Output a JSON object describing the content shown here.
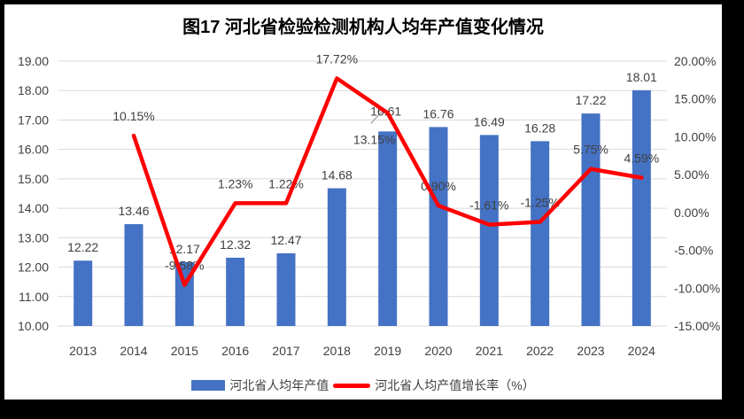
{
  "title": "图17 河北省检验检测机构人均年产值变化情况",
  "colors": {
    "frame": "#000000",
    "card": "#FFFFFF",
    "bar": "#4472C4",
    "line": "#FF0000",
    "grid": "#D9D9D9",
    "axis_text": "#404040",
    "label_text": "#404040",
    "leader": "#A6A6A6",
    "title_text": "#000000"
  },
  "chart_data": {
    "type": "bar+line",
    "title": "图17 河北省检验检测机构人均年产值变化情况",
    "categories": [
      "2013",
      "2014",
      "2015",
      "2016",
      "2017",
      "2018",
      "2019",
      "2020",
      "2021",
      "2022",
      "2023",
      "2024"
    ],
    "series": [
      {
        "name": "河北省人均年产值",
        "type": "bar",
        "axis": "left",
        "color": "#4472C4",
        "values": [
          12.22,
          13.46,
          12.17,
          12.32,
          12.47,
          14.68,
          16.61,
          16.76,
          16.49,
          16.28,
          17.22,
          18.01
        ],
        "labels": [
          "12.22",
          "13.46",
          "12.17",
          "12.32",
          "12.47",
          "14.68",
          "16.61",
          "16.76",
          "16.49",
          "16.28",
          "17.22",
          "18.01"
        ]
      },
      {
        "name": "河北省人均产值增长率（%）",
        "type": "line",
        "axis": "right",
        "color": "#FF0000",
        "values": [
          null,
          10.15,
          -9.58,
          1.23,
          1.22,
          17.72,
          13.15,
          0.9,
          -1.61,
          -1.25,
          5.75,
          4.59
        ],
        "labels": [
          null,
          "10.15%",
          "-9.58%",
          "1.23%",
          "1.22%",
          "17.72%",
          "13.15%",
          "0.90%",
          "-1.61%",
          "-1.25%",
          "5.75%",
          "4.59%"
        ]
      }
    ],
    "left_axis": {
      "min": 10,
      "max": 19,
      "step": 1,
      "tick_labels": [
        "19.00",
        "18.00",
        "17.00",
        "16.00",
        "15.00",
        "14.00",
        "13.00",
        "12.00",
        "11.00",
        "10.00"
      ]
    },
    "right_axis": {
      "min": -15,
      "max": 20,
      "step": 5,
      "tick_labels": [
        "20.00%",
        "15.00%",
        "10.00%",
        "5.00%",
        "0.00%",
        "-5.00%",
        "-10.00%",
        "-15.00%"
      ]
    },
    "grid": true,
    "legend_position": "bottom",
    "label_overrides": {
      "bar": {
        "6": {
          "dx": -2,
          "dy": -8,
          "leader": true
        }
      },
      "line": {
        "6": {
          "dx": -15,
          "dy": 52
        }
      }
    }
  },
  "legend": {
    "items": [
      {
        "label": "河北省人均年产值",
        "swatch": "bar",
        "color": "#4472C4"
      },
      {
        "label": "河北省人均产值增长率（%）",
        "swatch": "line",
        "color": "#FF0000"
      }
    ]
  }
}
